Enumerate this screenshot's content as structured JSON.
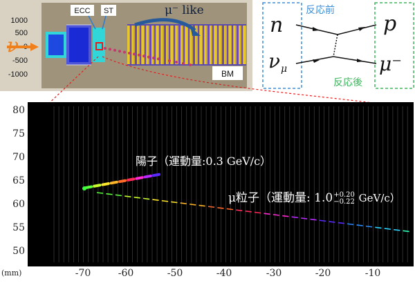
{
  "detector": {
    "neutrino_symbol": "ν",
    "y_ticks": [
      "1000",
      "500",
      "0",
      "-500",
      "-1000"
    ],
    "ecc_label": "ECC",
    "st_label": "ST",
    "muon_like_label": "μ⁻ like",
    "bm_label": "BM",
    "colors": {
      "frame": "#d8d0c0",
      "inner": "#9e8f77",
      "yellow": "#e7c72a",
      "purple": "#6d4ab1",
      "blue": "#1a2bd6",
      "cyan": "#31d6d9",
      "arrow": "#275a9a"
    }
  },
  "feynman": {
    "neutron": "n",
    "neutrino": "ν",
    "neutrino_sub": "μ",
    "proton": "p",
    "muon": "μ⁻",
    "before_label": "反応前",
    "after_label": "反応後",
    "before_color": "#3d8ed8",
    "after_color": "#3bb55b"
  },
  "tracks": {
    "y_ticks": [
      "80",
      "75",
      "70",
      "65",
      "60",
      "55",
      "50"
    ],
    "x_ticks": [
      "-70",
      "-60",
      "-50",
      "-40",
      "-30",
      "-20",
      "-10"
    ],
    "unit": "(mm)",
    "proton_label": "陽子（運動量:0.3 GeV/c）",
    "muon_label_prefix": "μ粒子（運動量: 1.0",
    "muon_sup": "+0.20",
    "muon_sub": "−0.22",
    "muon_label_suffix": " GeV/c）"
  }
}
